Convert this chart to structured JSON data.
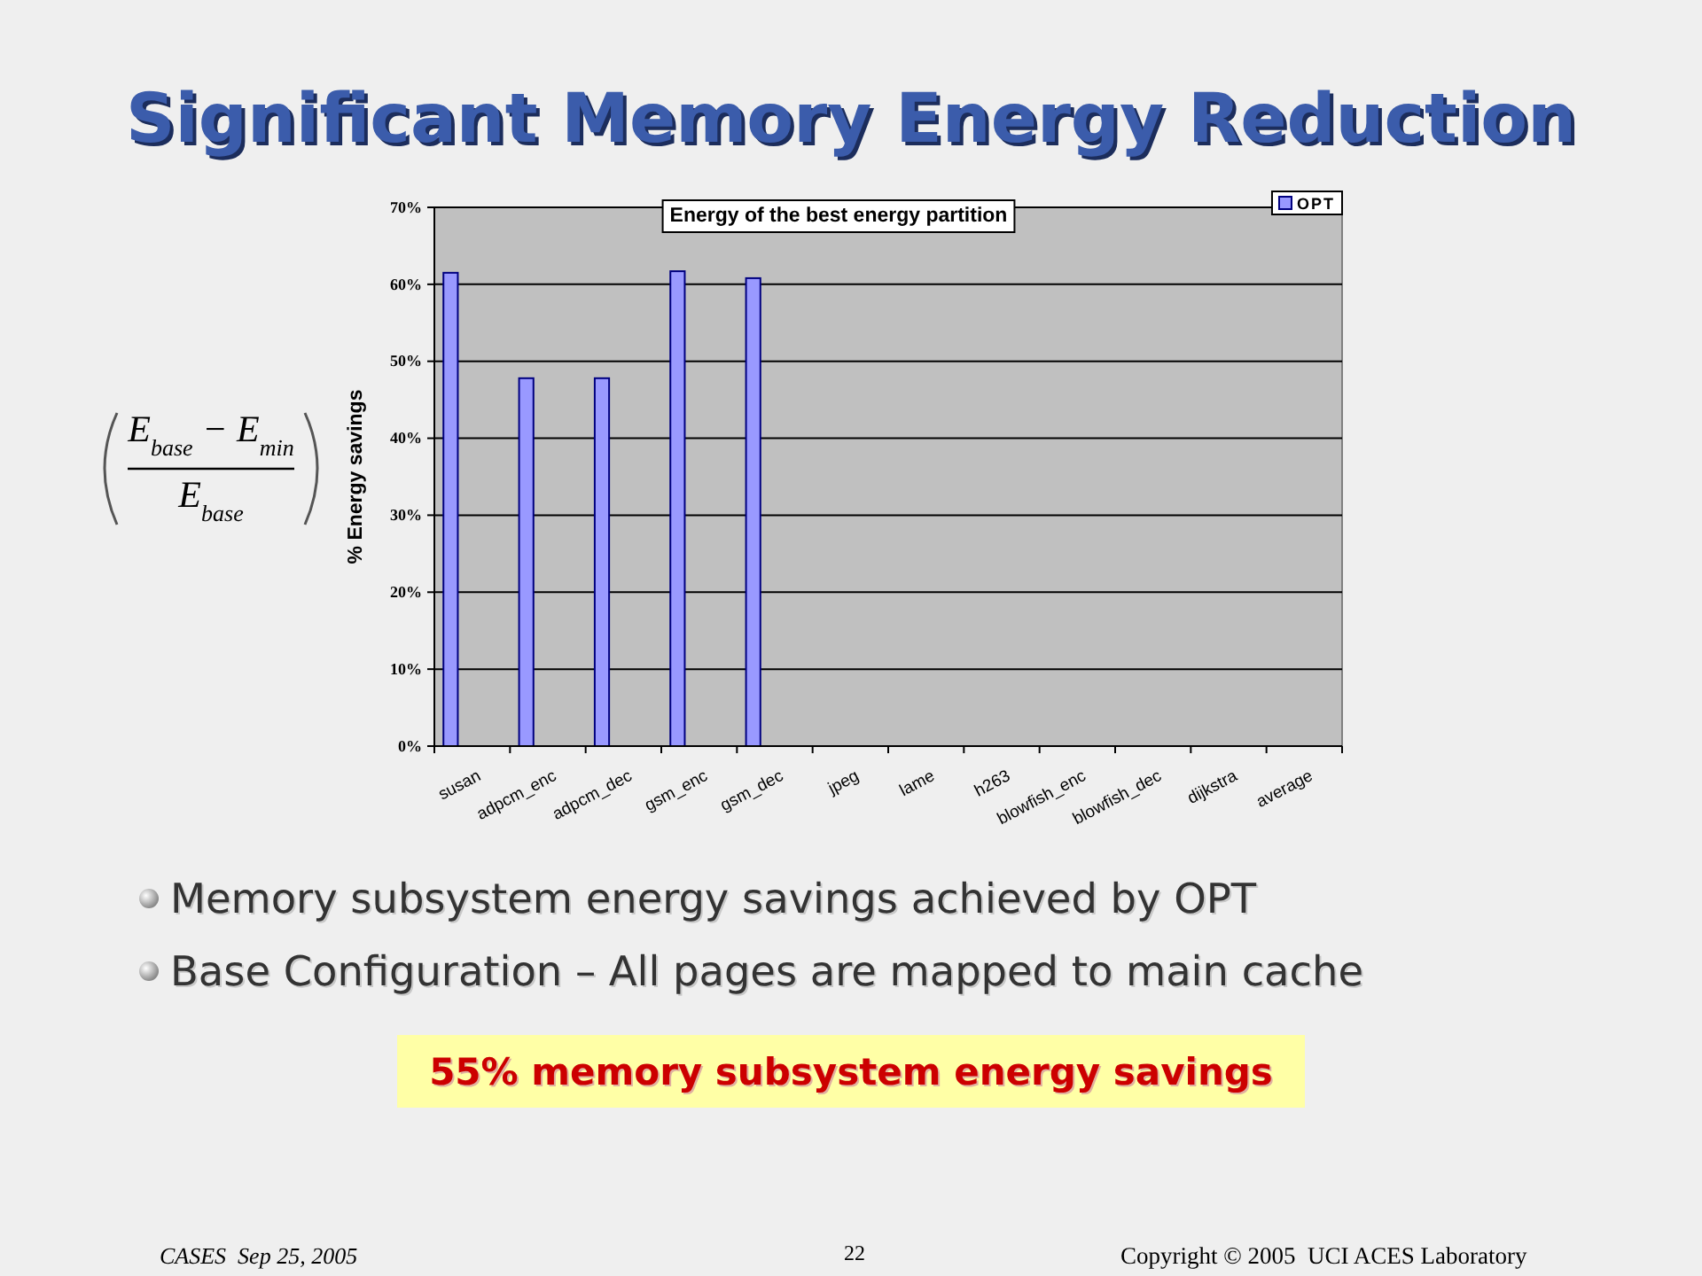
{
  "chart_data": {
    "type": "bar",
    "title": "Significant Memory Energy Reduction",
    "subtitle": "Energy of the best energy partition",
    "ylabel": "% Energy savings",
    "categories": [
      "susan",
      "adpcm_enc",
      "adpcm_dec",
      "gsm_enc",
      "gsm_dec",
      "jpeg",
      "lame",
      "h263",
      "blowfish_enc",
      "blowfish_dec",
      "dijkstra",
      "average"
    ],
    "series": [
      {
        "name": "OPT",
        "color": "#9999ff",
        "values": [
          61.5,
          47.8,
          47.8,
          61.7,
          60.8,
          null,
          null,
          null,
          null,
          null,
          null,
          null
        ]
      }
    ],
    "ylim": [
      0,
      70
    ],
    "yticks": [
      {
        "value": 0,
        "label": "0%"
      },
      {
        "value": 10,
        "label": "10%"
      },
      {
        "value": 20,
        "label": "20%"
      },
      {
        "value": 30,
        "label": "30%"
      },
      {
        "value": 40,
        "label": "40%"
      },
      {
        "value": 50,
        "label": "50%"
      },
      {
        "value": 60,
        "label": "60%"
      },
      {
        "value": 70,
        "label": "70%"
      }
    ],
    "grid": "y",
    "legend": "top right",
    "annotations": [
      "E$_{base}$ − E$_{min}$",
      "E$_{base}$",
      "Memory subsystem energy savings achieved by OPT",
      "Base Configuration – All pages are mapped to main cache",
      "55% memory subsystem energy savings",
      "CASES  Sep 25, 2005",
      "22",
      "Copyright © 2005  UCI ACES Laboratory"
    ]
  }
}
